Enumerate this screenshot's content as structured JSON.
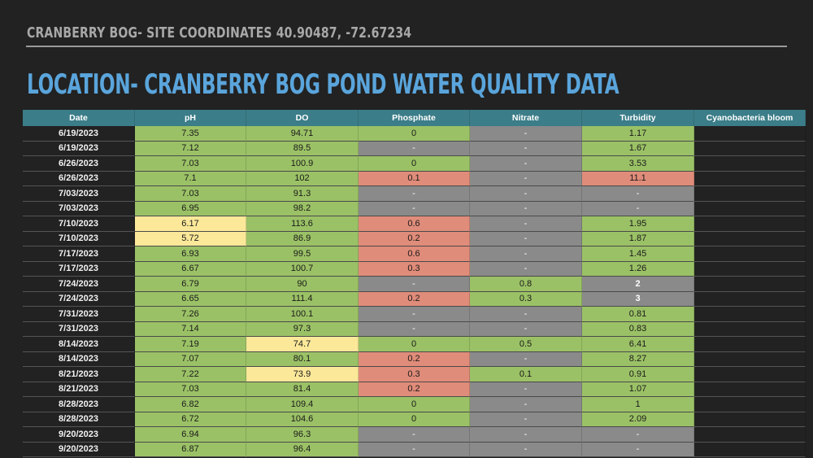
{
  "header": {
    "subtitle": "CRANBERRY BOG- SITE COORDINATES 40.90487, -72.67234",
    "title": "LOCATION- CRANBERRY BOG POND WATER QUALITY DATA"
  },
  "colors": {
    "background": "#222222",
    "title": "#5aa5dc",
    "header_row": "#3b7d88",
    "good": "#9bc166",
    "warning": "#fbe899",
    "bad": "#e08c7a",
    "no_data": "#8a8a8a"
  },
  "table": {
    "columns": [
      "Date",
      "pH",
      "DO",
      "Phosphate",
      "Nitrate",
      "Turbidity",
      "Cyanobacteria bloom"
    ],
    "rows": [
      {
        "date": "6/19/2023",
        "ph": "7.35",
        "ph_s": "g",
        "do": "94.71",
        "do_s": "g",
        "phos": "0",
        "phos_s": "g",
        "nit": "-",
        "nit_s": "n",
        "turb": "1.17",
        "turb_s": "g",
        "cyano": ""
      },
      {
        "date": "6/19/2023",
        "ph": "7.12",
        "ph_s": "g",
        "do": "89.5",
        "do_s": "g",
        "phos": "-",
        "phos_s": "n",
        "nit": "-",
        "nit_s": "n",
        "turb": "1.67",
        "turb_s": "g",
        "cyano": ""
      },
      {
        "date": "6/26/2023",
        "ph": "7.03",
        "ph_s": "g",
        "do": "100.9",
        "do_s": "g",
        "phos": "0",
        "phos_s": "g",
        "nit": "-",
        "nit_s": "n",
        "turb": "3.53",
        "turb_s": "g",
        "cyano": ""
      },
      {
        "date": "6/26/2023",
        "ph": "7.1",
        "ph_s": "g",
        "do": "102",
        "do_s": "g",
        "phos": "0.1",
        "phos_s": "r",
        "nit": "-",
        "nit_s": "n",
        "turb": "11.1",
        "turb_s": "r",
        "cyano": ""
      },
      {
        "date": "7/03/2023",
        "ph": "7.03",
        "ph_s": "g",
        "do": "91.3",
        "do_s": "g",
        "phos": "-",
        "phos_s": "n",
        "nit": "-",
        "nit_s": "n",
        "turb": "-",
        "turb_s": "n",
        "cyano": ""
      },
      {
        "date": "7/03/2023",
        "ph": "6.95",
        "ph_s": "g",
        "do": "98.2",
        "do_s": "g",
        "phos": "-",
        "phos_s": "n",
        "nit": "-",
        "nit_s": "n",
        "turb": "-",
        "turb_s": "n",
        "cyano": ""
      },
      {
        "date": "7/10/2023",
        "ph": "6.17",
        "ph_s": "y",
        "do": "113.6",
        "do_s": "g",
        "phos": "0.6",
        "phos_s": "r",
        "nit": "-",
        "nit_s": "n",
        "turb": "1.95",
        "turb_s": "g",
        "cyano": ""
      },
      {
        "date": "7/10/2023",
        "ph": "5.72",
        "ph_s": "y",
        "do": "86.9",
        "do_s": "g",
        "phos": "0.2",
        "phos_s": "r",
        "nit": "-",
        "nit_s": "n",
        "turb": "1.87",
        "turb_s": "g",
        "cyano": ""
      },
      {
        "date": "7/17/2023",
        "ph": "6.93",
        "ph_s": "g",
        "do": "99.5",
        "do_s": "g",
        "phos": "0.6",
        "phos_s": "r",
        "nit": "-",
        "nit_s": "n",
        "turb": "1.45",
        "turb_s": "g",
        "cyano": ""
      },
      {
        "date": "7/17/2023",
        "ph": "6.67",
        "ph_s": "g",
        "do": "100.7",
        "do_s": "g",
        "phos": "0.3",
        "phos_s": "r",
        "nit": "-",
        "nit_s": "n",
        "turb": "1.26",
        "turb_s": "g",
        "cyano": ""
      },
      {
        "date": "7/24/2023",
        "ph": "6.79",
        "ph_s": "g",
        "do": "90",
        "do_s": "g",
        "phos": "-",
        "phos_s": "n",
        "nit": "0.8",
        "nit_s": "g",
        "turb": "2",
        "turb_s": "n",
        "cyano": ""
      },
      {
        "date": "7/24/2023",
        "ph": "6.65",
        "ph_s": "g",
        "do": "111.4",
        "do_s": "g",
        "phos": "0.2",
        "phos_s": "r",
        "nit": "0.3",
        "nit_s": "g",
        "turb": "3",
        "turb_s": "n",
        "cyano": ""
      },
      {
        "date": "7/31/2023",
        "ph": "7.26",
        "ph_s": "g",
        "do": "100.1",
        "do_s": "g",
        "phos": "-",
        "phos_s": "n",
        "nit": "-",
        "nit_s": "n",
        "turb": "0.81",
        "turb_s": "g",
        "cyano": ""
      },
      {
        "date": "7/31/2023",
        "ph": "7.14",
        "ph_s": "g",
        "do": "97.3",
        "do_s": "g",
        "phos": "-",
        "phos_s": "n",
        "nit": "-",
        "nit_s": "n",
        "turb": "0.83",
        "turb_s": "g",
        "cyano": ""
      },
      {
        "date": "8/14/2023",
        "ph": "7.19",
        "ph_s": "g",
        "do": "74.7",
        "do_s": "y",
        "phos": "0",
        "phos_s": "g",
        "nit": "0.5",
        "nit_s": "g",
        "turb": "6.41",
        "turb_s": "g",
        "cyano": ""
      },
      {
        "date": "8/14/2023",
        "ph": "7.07",
        "ph_s": "g",
        "do": "80.1",
        "do_s": "g",
        "phos": "0.2",
        "phos_s": "r",
        "nit": "-",
        "nit_s": "n",
        "turb": "8.27",
        "turb_s": "g",
        "cyano": ""
      },
      {
        "date": "8/21/2023",
        "ph": "7.22",
        "ph_s": "g",
        "do": "73.9",
        "do_s": "y",
        "phos": "0.3",
        "phos_s": "r",
        "nit": "0.1",
        "nit_s": "g",
        "turb": "0.91",
        "turb_s": "g",
        "cyano": ""
      },
      {
        "date": "8/21/2023",
        "ph": "7.03",
        "ph_s": "g",
        "do": "81.4",
        "do_s": "g",
        "phos": "0.2",
        "phos_s": "r",
        "nit": "-",
        "nit_s": "n",
        "turb": "1.07",
        "turb_s": "g",
        "cyano": ""
      },
      {
        "date": "8/28/2023",
        "ph": "6.82",
        "ph_s": "g",
        "do": "109.4",
        "do_s": "g",
        "phos": "0",
        "phos_s": "g",
        "nit": "-",
        "nit_s": "n",
        "turb": "1",
        "turb_s": "g",
        "cyano": ""
      },
      {
        "date": "8/28/2023",
        "ph": "6.72",
        "ph_s": "g",
        "do": "104.6",
        "do_s": "g",
        "phos": "0",
        "phos_s": "g",
        "nit": "-",
        "nit_s": "n",
        "turb": "2.09",
        "turb_s": "g",
        "cyano": ""
      },
      {
        "date": "9/20/2023",
        "ph": "6.94",
        "ph_s": "g",
        "do": "96.3",
        "do_s": "g",
        "phos": "-",
        "phos_s": "n",
        "nit": "-",
        "nit_s": "n",
        "turb": "-",
        "turb_s": "n",
        "cyano": ""
      },
      {
        "date": "9/20/2023",
        "ph": "6.87",
        "ph_s": "g",
        "do": "96.4",
        "do_s": "g",
        "phos": "-",
        "phos_s": "n",
        "nit": "-",
        "nit_s": "n",
        "turb": "-",
        "turb_s": "n",
        "cyano": ""
      }
    ]
  }
}
